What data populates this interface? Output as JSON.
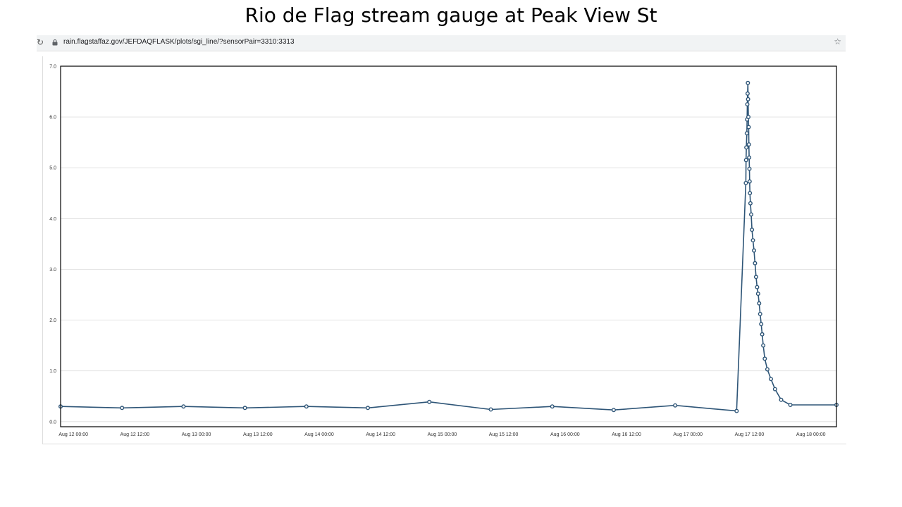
{
  "slide": {
    "title": "Rio de Flag stream gauge at Peak View St"
  },
  "browser": {
    "url": "rain.flagstaffaz.gov/JEFDAQFLASK/plots/sgi_line/?sensorPair=3310:3313",
    "reload_icon": "reload-icon",
    "lock_icon": "lock-icon",
    "star_icon": "bookmark-star-icon"
  },
  "chart_data": {
    "type": "line",
    "title": "",
    "xlabel": "",
    "ylabel": "",
    "x_unit": "hours since Aug 12 00:00",
    "xlim": [
      -2.5,
      149
    ],
    "ylim": [
      -0.1,
      7.0
    ],
    "y_ticks": [
      "0.0",
      "1.0",
      "2.0",
      "3.0",
      "4.0",
      "5.0",
      "6.0",
      "7.0"
    ],
    "x_ticks": [
      {
        "label": "Aug 12 00:00",
        "value": 0
      },
      {
        "label": "Aug 12 12:00",
        "value": 12
      },
      {
        "label": "Aug 13 00:00",
        "value": 24
      },
      {
        "label": "Aug 13 12:00",
        "value": 36
      },
      {
        "label": "Aug 14 00:00",
        "value": 48
      },
      {
        "label": "Aug 14 12:00",
        "value": 60
      },
      {
        "label": "Aug 15 00:00",
        "value": 72
      },
      {
        "label": "Aug 15 12:00",
        "value": 84
      },
      {
        "label": "Aug 16 00:00",
        "value": 96
      },
      {
        "label": "Aug 16 12:00",
        "value": 108
      },
      {
        "label": "Aug 17 00:00",
        "value": 120
      },
      {
        "label": "Aug 17 12:00",
        "value": 132
      },
      {
        "label": "Aug 18 00:00",
        "value": 144
      }
    ],
    "grid": "horizontal",
    "line_color": "#2e5577",
    "series": [
      {
        "x": [
          -2.5,
          9.5,
          21.5,
          33.5,
          45.5,
          57.5,
          69.5,
          81.5,
          93.5,
          105.5,
          117.5,
          129.5,
          131.3,
          131.35,
          131.4,
          131.5,
          131.55,
          131.6,
          131.65,
          131.7,
          131.75,
          131.8,
          131.85,
          131.9,
          131.95,
          132.0,
          132.05,
          132.1,
          132.2,
          132.35,
          132.5,
          132.7,
          132.9,
          133.1,
          133.3,
          133.5,
          133.7,
          133.9,
          134.1,
          134.3,
          134.5,
          134.7,
          135.0,
          135.5,
          136.2,
          137.0,
          138.2,
          140.0,
          149.0
        ],
        "y": [
          0.3,
          0.27,
          0.3,
          0.27,
          0.3,
          0.27,
          0.39,
          0.24,
          0.3,
          0.23,
          0.32,
          0.21,
          4.7,
          5.15,
          5.4,
          5.68,
          5.95,
          6.25,
          6.46,
          6.67,
          6.35,
          6.0,
          5.8,
          5.46,
          5.2,
          4.98,
          4.73,
          4.5,
          4.3,
          4.08,
          3.78,
          3.57,
          3.37,
          3.12,
          2.85,
          2.65,
          2.52,
          2.33,
          2.12,
          1.92,
          1.72,
          1.5,
          1.24,
          1.03,
          0.84,
          0.64,
          0.43,
          0.33,
          0.33
        ]
      }
    ]
  }
}
